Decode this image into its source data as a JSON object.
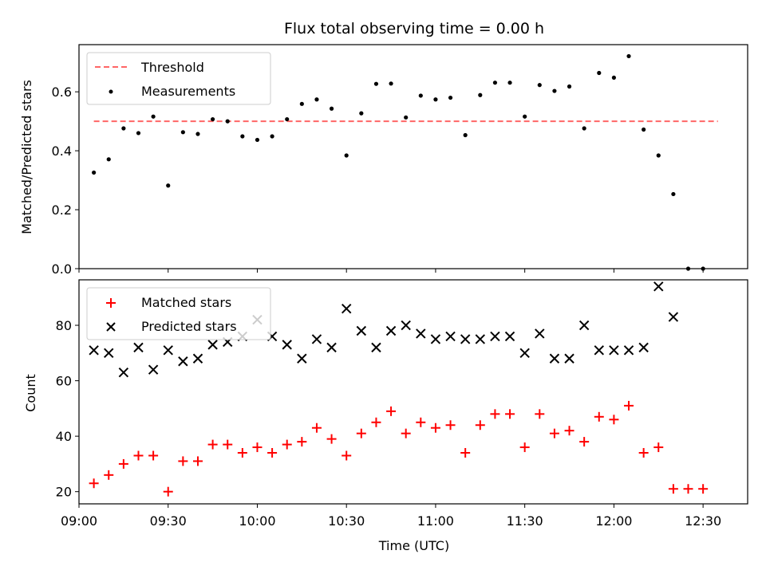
{
  "chart_data": [
    {
      "type": "scatter",
      "title": "Flux total observing time = 0.00 h",
      "ylabel": "Matched/Predicted stars",
      "xlabel": "",
      "x_range_minutes": [
        540,
        765
      ],
      "ylim": [
        0,
        0.76
      ],
      "yticks": [
        0.0,
        0.2,
        0.4,
        0.6
      ],
      "ytick_labels": [
        "0.0",
        "0.2",
        "0.4",
        "0.6"
      ],
      "legend_position": "upper-left",
      "threshold": {
        "name": "Threshold",
        "color": "#ff6666",
        "style": "dashed",
        "y": 0.5,
        "x_start": "09:05",
        "x_end": "12:35"
      },
      "series": [
        {
          "name": "Measurements",
          "color": "#000000",
          "marker": "dot",
          "x": [
            "09:05",
            "09:10",
            "09:15",
            "09:20",
            "09:25",
            "09:30",
            "09:35",
            "09:40",
            "09:45",
            "09:50",
            "09:55",
            "10:00",
            "10:05",
            "10:10",
            "10:15",
            "10:20",
            "10:25",
            "10:30",
            "10:35",
            "10:40",
            "10:45",
            "10:50",
            "10:55",
            "11:00",
            "11:05",
            "11:10",
            "11:15",
            "11:20",
            "11:25",
            "11:30",
            "11:35",
            "11:40",
            "11:45",
            "11:50",
            "11:55",
            "12:00",
            "12:05",
            "12:10",
            "12:15",
            "12:20",
            "12:25",
            "12:30"
          ],
          "y": [
            0.326,
            0.371,
            0.476,
            0.46,
            0.516,
            0.282,
            0.463,
            0.457,
            0.507,
            0.5,
            0.449,
            0.437,
            0.449,
            0.507,
            0.559,
            0.574,
            0.543,
            0.384,
            0.527,
            0.627,
            0.628,
            0.513,
            0.587,
            0.574,
            0.58,
            0.453,
            0.589,
            0.631,
            0.631,
            0.516,
            0.623,
            0.603,
            0.618,
            0.476,
            0.664,
            0.648,
            0.721,
            0.472,
            0.384,
            0.253,
            0.0,
            0.0
          ]
        }
      ]
    },
    {
      "type": "scatter",
      "title": "",
      "ylabel": "Count",
      "xlabel": "Time (UTC)",
      "x_range_minutes": [
        540,
        765
      ],
      "xticks": [
        "09:00",
        "09:30",
        "10:00",
        "10:30",
        "11:00",
        "11:30",
        "12:00",
        "12:30"
      ],
      "ylim": [
        15.6,
        96.4
      ],
      "yticks": [
        20,
        40,
        60,
        80
      ],
      "ytick_labels": [
        "20",
        "40",
        "60",
        "80"
      ],
      "legend_position": "upper-left",
      "series": [
        {
          "name": "Matched stars",
          "color": "#ff0000",
          "marker": "plus",
          "x": [
            "09:05",
            "09:10",
            "09:15",
            "09:20",
            "09:25",
            "09:30",
            "09:35",
            "09:40",
            "09:45",
            "09:50",
            "09:55",
            "10:00",
            "10:05",
            "10:10",
            "10:15",
            "10:20",
            "10:25",
            "10:30",
            "10:35",
            "10:40",
            "10:45",
            "10:50",
            "10:55",
            "11:00",
            "11:05",
            "11:10",
            "11:15",
            "11:20",
            "11:25",
            "11:30",
            "11:35",
            "11:40",
            "11:45",
            "11:50",
            "11:55",
            "12:00",
            "12:05",
            "12:10",
            "12:15",
            "12:20",
            "12:25",
            "12:30"
          ],
          "y": [
            23,
            26,
            30,
            33,
            33,
            20,
            31,
            31,
            37,
            37,
            34,
            36,
            34,
            37,
            38,
            43,
            39,
            33,
            41,
            45,
            49,
            41,
            45,
            43,
            44,
            34,
            44,
            48,
            48,
            36,
            48,
            41,
            42,
            38,
            47,
            46,
            51,
            34,
            36,
            21,
            21,
            21
          ]
        },
        {
          "name": "Predicted stars",
          "color": "#000000",
          "marker": "x",
          "x": [
            "09:05",
            "09:10",
            "09:15",
            "09:20",
            "09:25",
            "09:30",
            "09:35",
            "09:40",
            "09:45",
            "09:50",
            "09:55",
            "10:00",
            "10:05",
            "10:10",
            "10:15",
            "10:20",
            "10:25",
            "10:30",
            "10:35",
            "10:40",
            "10:45",
            "10:50",
            "10:55",
            "11:00",
            "11:05",
            "11:10",
            "11:15",
            "11:20",
            "11:25",
            "11:30",
            "11:35",
            "11:40",
            "11:45",
            "11:50",
            "11:55",
            "12:00",
            "12:05",
            "12:10",
            "12:15",
            "12:20"
          ],
          "y": [
            71,
            70,
            63,
            72,
            64,
            71,
            67,
            68,
            73,
            74,
            76,
            82,
            76,
            73,
            68,
            75,
            72,
            86,
            78,
            72,
            78,
            80,
            77,
            75,
            76,
            75,
            75,
            76,
            76,
            70,
            77,
            68,
            68,
            80,
            71,
            71,
            71,
            72,
            94,
            83
          ]
        }
      ]
    }
  ]
}
